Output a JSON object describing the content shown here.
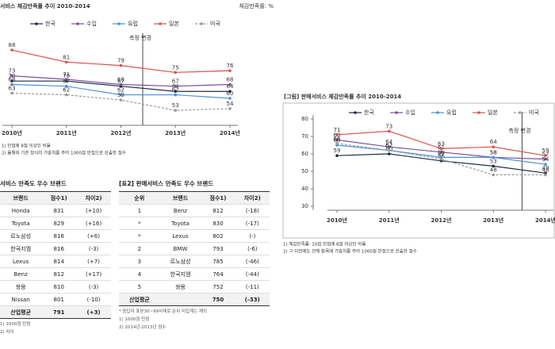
{
  "chart_data": [
    {
      "type": "line",
      "title": "서비스 체감만족률 추이 2010-2014",
      "unit_label": "체감만족률: %",
      "categories": [
        "2010년",
        "2011년",
        "2012년",
        "2013년",
        "2014년"
      ],
      "series": [
        {
          "name": "한국",
          "color": "#1f2a44",
          "values": [
            70,
            70,
            67,
            64,
            64
          ]
        },
        {
          "name": "수입",
          "color": "#7b4fa0",
          "values": [
            73,
            71,
            68,
            67,
            68
          ]
        },
        {
          "name": "유럽",
          "color": "#4a90d9",
          "values": [
            68,
            67,
            62,
            62,
            60
          ]
        },
        {
          "name": "일본",
          "color": "#d9534f",
          "values": [
            88,
            81,
            79,
            75,
            76
          ]
        },
        {
          "name": "미국",
          "color": "#9a9a9a",
          "dashed": true,
          "values": [
            63,
            62,
            59,
            53,
            54
          ]
        }
      ],
      "ylim": [
        48,
        94
      ],
      "annotation": "측정 변경",
      "notes": [
        "1) 만점에 8점 이상인 비율",
        "2) 올해와 기존 방식의 가중치를 주어 1000점 만점으로 산출한 점수"
      ]
    },
    {
      "type": "line",
      "title": "[그림] 판매서비스 체감만족률 추이 2010-2014",
      "categories": [
        "2010년",
        "2011년",
        "2012년",
        "2013년",
        "2014년"
      ],
      "series": [
        {
          "name": "한국",
          "color": "#1f2a44",
          "values": [
            59,
            60,
            56,
            53,
            49
          ]
        },
        {
          "name": "수입",
          "color": "#7b4fa0",
          "values": [
            68,
            64,
            61,
            58,
            57
          ]
        },
        {
          "name": "유럽",
          "color": "#4a90d9",
          "values": [
            65,
            62,
            58,
            58,
            54
          ]
        },
        {
          "name": "일본",
          "color": "#d9534f",
          "values": [
            71,
            73,
            63,
            64,
            59
          ]
        },
        {
          "name": "미국",
          "color": "#9a9a9a",
          "dashed": true,
          "values": [
            66,
            62,
            57,
            48,
            48
          ]
        }
      ],
      "ylim": [
        30,
        80
      ],
      "yticks": [
        30,
        40,
        50,
        60,
        70,
        80
      ],
      "annotation": "측정 변경",
      "notes": [
        "1) 체감만족률: 10점 만점에 8점 이상인 비율",
        "2) 그 이전에도 전체 항목에 가중치를 주어 1000점 만점으로 산출한 점수"
      ]
    }
  ],
  "tables": [
    {
      "title": "서비스 만족도 우수 브랜드",
      "columns": [
        "브랜드",
        "점수1)",
        "차이2)"
      ],
      "rows": [
        [
          "Honda",
          831,
          "(+10)"
        ],
        [
          "Toyota",
          829,
          "(+16)"
        ],
        [
          "르노삼성",
          816,
          "(+6)"
        ],
        [
          "한국지엠",
          816,
          "(-3)"
        ],
        [
          "Lexus",
          814,
          "(+7)"
        ],
        [
          "Benz",
          812,
          "(+17)"
        ],
        [
          "쌍용",
          810,
          "(-3)"
        ],
        [
          "Nissan",
          801,
          "(-10)"
        ],
        [
          "산업평균",
          791,
          "(+3)"
        ]
      ],
      "notes": [
        "1) 1000점 만점",
        "2) 차이"
      ]
    },
    {
      "title": "[표2] 판매서비스 만족도 우수 브랜드",
      "columns": [
        "순위",
        "브랜드",
        "점수1)",
        "차이2)"
      ],
      "rows": [
        [
          "1",
          "Benz",
          812,
          "(-18)"
        ],
        [
          "*",
          "Toyota",
          830,
          "(-17)"
        ],
        [
          "*",
          "Lexus",
          802,
          "(-)"
        ],
        [
          "2",
          "BMW",
          793,
          "(-6)"
        ],
        [
          "3",
          "르노삼성",
          785,
          "(-46)"
        ],
        [
          "4",
          "한국지엠",
          764,
          "(-44)"
        ],
        [
          "5",
          "쌍용",
          752,
          "(-11)"
        ],
        [
          "산업평균",
          "",
          750,
          "(-33)"
        ]
      ],
      "notes": [
        "* 응답자 표본30~99사례로 순위 미집계는 제외",
        "1) 1000점 만점",
        "2) 2014년-2013년 점수"
      ]
    }
  ]
}
